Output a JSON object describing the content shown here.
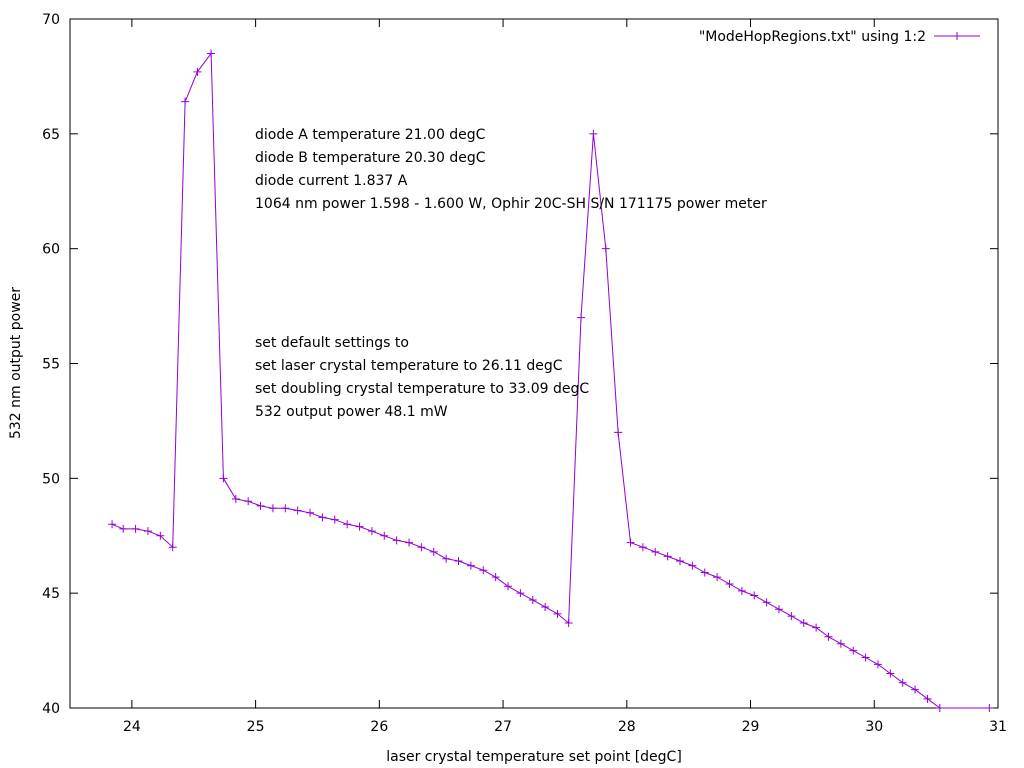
{
  "chart_data": {
    "type": "line",
    "xlabel": "laser crystal temperature set point [degC]",
    "ylabel": "532 nm output power",
    "xlim": [
      23.5,
      31
    ],
    "ylim": [
      40,
      70
    ],
    "xticks": [
      24,
      25,
      26,
      27,
      28,
      29,
      30,
      31
    ],
    "yticks": [
      40,
      45,
      50,
      55,
      60,
      65,
      70
    ],
    "grid": false,
    "legend_position": "top-right",
    "series": [
      {
        "name": "\"ModeHopRegions.txt\" using 1:2",
        "color": "#9400d3",
        "marker": "plus",
        "x": [
          23.84,
          23.93,
          24.03,
          24.13,
          24.23,
          24.33,
          24.43,
          24.53,
          24.64,
          24.74,
          24.84,
          24.94,
          25.04,
          25.14,
          25.24,
          25.34,
          25.44,
          25.54,
          25.64,
          25.74,
          25.84,
          25.94,
          26.04,
          26.14,
          26.24,
          26.34,
          26.44,
          26.54,
          26.64,
          26.74,
          26.84,
          26.94,
          27.04,
          27.14,
          27.24,
          27.34,
          27.44,
          27.53,
          27.63,
          27.73,
          27.83,
          27.93,
          28.03,
          28.13,
          28.23,
          28.33,
          28.43,
          28.53,
          28.63,
          28.73,
          28.83,
          28.93,
          29.03,
          29.13,
          29.23,
          29.33,
          29.43,
          29.53,
          29.63,
          29.73,
          29.83,
          29.93,
          30.03,
          30.13,
          30.23,
          30.33,
          30.43,
          30.53,
          30.93
        ],
        "y": [
          48.0,
          47.8,
          47.8,
          47.7,
          47.5,
          47.0,
          66.4,
          67.7,
          68.5,
          50.0,
          49.1,
          49.0,
          48.8,
          48.7,
          48.7,
          48.6,
          48.5,
          48.3,
          48.2,
          48.0,
          47.9,
          47.7,
          47.5,
          47.3,
          47.2,
          47.0,
          46.8,
          46.5,
          46.4,
          46.2,
          46.0,
          45.7,
          45.3,
          45.0,
          44.7,
          44.4,
          44.1,
          43.7,
          57.0,
          65.0,
          60.0,
          52.0,
          47.2,
          47.0,
          46.8,
          46.6,
          46.4,
          46.2,
          45.9,
          45.7,
          45.4,
          45.1,
          44.9,
          44.6,
          44.3,
          44.0,
          43.7,
          43.5,
          43.1,
          42.8,
          42.5,
          42.2,
          41.9,
          41.5,
          41.1,
          40.8,
          40.4,
          40.0,
          40.0
        ]
      }
    ],
    "annotations": {
      "block1": [
        "diode A temperature 21.00 degC",
        "diode B temperature 20.30 degC",
        "diode current 1.837 A",
        "1064 nm power 1.598 - 1.600 W, Ophir 20C-SH S/N 171175 power meter"
      ],
      "block2": [
        "set default settings to",
        "set laser crystal temperature to 26.11 degC",
        "set doubling crystal temperature to 33.09 degC",
        "532 output power 48.1 mW"
      ],
      "block2_first_line_color": "#ff0000"
    }
  }
}
